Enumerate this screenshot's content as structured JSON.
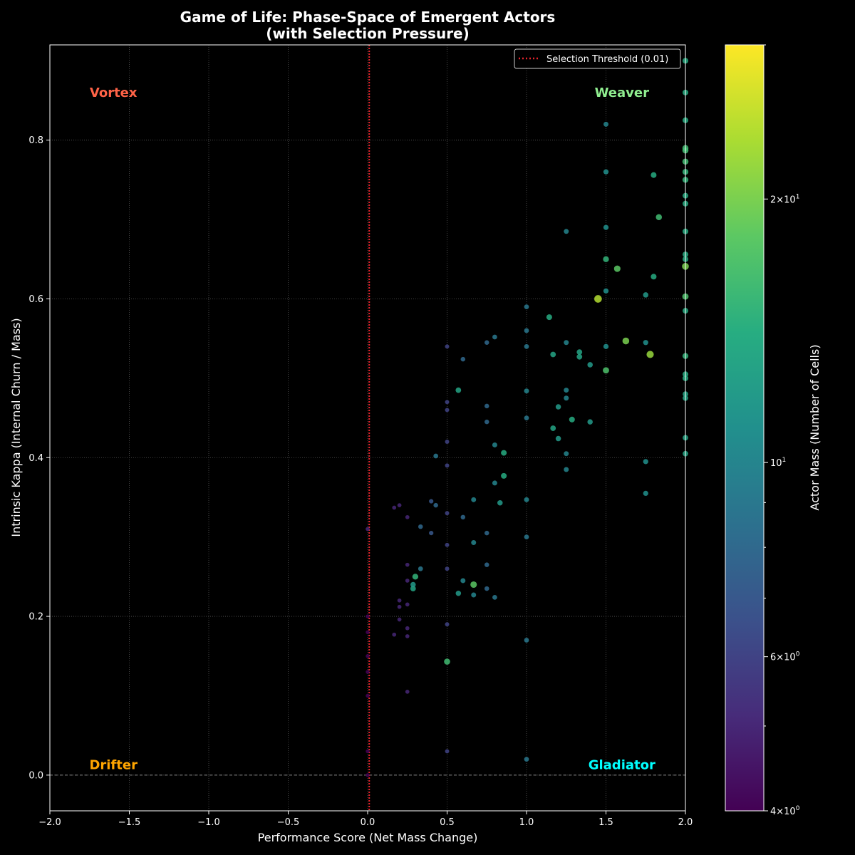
{
  "chart_data": {
    "type": "scatter",
    "title": [
      "Game of Life: Phase-Space of Emergent Actors",
      "(with Selection Pressure)"
    ],
    "xlabel": "Performance Score (Net Mass Change)",
    "ylabel": "Intrinsic Kappa (Internal Churn / Mass)",
    "xlim": [
      -2.0,
      2.0
    ],
    "ylim": [
      -0.045,
      0.92
    ],
    "x_ticks": [
      -2.0,
      -1.5,
      -1.0,
      -0.5,
      0.0,
      0.5,
      1.0,
      1.5,
      2.0
    ],
    "x_tick_labels": [
      "−2.0",
      "−1.5",
      "−1.0",
      "−0.5",
      "0.0",
      "0.5",
      "1.0",
      "1.5",
      "2.0"
    ],
    "y_ticks": [
      0.0,
      0.2,
      0.4,
      0.6,
      0.8
    ],
    "y_tick_labels": [
      "0.0",
      "0.2",
      "0.4",
      "0.6",
      "0.8"
    ],
    "grid": true,
    "background_color": "#000000",
    "threshold": {
      "value": 0.01,
      "label": "Selection Threshold (0.01)",
      "color": "#e8242c"
    },
    "zero_line_color": "#888888",
    "legend_position": "upper-right",
    "regions": [
      {
        "name": "Vortex",
        "x": -1.6,
        "y": 0.86,
        "color": "#ff6347"
      },
      {
        "name": "Weaver",
        "x": 1.6,
        "y": 0.86,
        "color": "#90ee90"
      },
      {
        "name": "Drifter",
        "x": -1.6,
        "y": 0.013,
        "color": "#ffa500"
      },
      {
        "name": "Gladiator",
        "x": 1.6,
        "y": 0.013,
        "color": "#00ffff"
      }
    ],
    "colorbar": {
      "label": "Actor Mass (Number of Cells)",
      "scale": "log",
      "range": [
        4,
        30
      ],
      "ticks": [
        {
          "value": 4,
          "base": "4",
          "mult": "×10",
          "exp": "0"
        },
        {
          "value": 6,
          "base": "6",
          "mult": "×10",
          "exp": "0"
        },
        {
          "value": 10,
          "base": "10",
          "mult": "",
          "exp": "1"
        },
        {
          "value": 20,
          "base": "2",
          "mult": "×10",
          "exp": "1"
        }
      ],
      "minor_ticks": [
        5,
        7,
        8,
        9,
        30
      ],
      "colormap": [
        "#440154",
        "#472c7a",
        "#3b518b",
        "#2c718e",
        "#21908d",
        "#27ad81",
        "#5cc863",
        "#aadc32",
        "#fde725"
      ]
    },
    "points": [
      [
        0.0,
        0.0,
        4
      ],
      [
        0.0,
        0.03,
        4
      ],
      [
        0.0,
        0.1,
        4
      ],
      [
        0.0,
        0.13,
        4
      ],
      [
        0.0,
        0.15,
        4
      ],
      [
        0.0,
        0.18,
        4
      ],
      [
        0.0,
        0.2,
        4
      ],
      [
        0.0,
        0.31,
        5
      ],
      [
        0.167,
        0.177,
        5
      ],
      [
        0.167,
        0.337,
        5
      ],
      [
        0.2,
        0.196,
        5
      ],
      [
        0.2,
        0.212,
        5
      ],
      [
        0.2,
        0.22,
        5
      ],
      [
        0.2,
        0.34,
        5
      ],
      [
        0.25,
        0.105,
        5
      ],
      [
        0.25,
        0.175,
        5
      ],
      [
        0.25,
        0.185,
        5
      ],
      [
        0.25,
        0.215,
        5
      ],
      [
        0.25,
        0.245,
        5
      ],
      [
        0.25,
        0.265,
        5
      ],
      [
        0.25,
        0.325,
        5
      ],
      [
        0.286,
        0.235,
        13
      ],
      [
        0.286,
        0.24,
        12
      ],
      [
        0.3,
        0.25,
        15
      ],
      [
        0.333,
        0.26,
        9
      ],
      [
        0.333,
        0.313,
        8
      ],
      [
        0.4,
        0.305,
        7
      ],
      [
        0.4,
        0.345,
        7
      ],
      [
        0.429,
        0.34,
        8
      ],
      [
        0.429,
        0.402,
        9
      ],
      [
        0.5,
        0.03,
        6
      ],
      [
        0.5,
        0.143,
        16
      ],
      [
        0.5,
        0.19,
        6
      ],
      [
        0.5,
        0.26,
        6
      ],
      [
        0.5,
        0.29,
        6
      ],
      [
        0.5,
        0.33,
        6
      ],
      [
        0.5,
        0.39,
        6
      ],
      [
        0.5,
        0.42,
        6
      ],
      [
        0.5,
        0.46,
        6
      ],
      [
        0.5,
        0.47,
        6
      ],
      [
        0.5,
        0.54,
        6
      ],
      [
        0.571,
        0.229,
        12
      ],
      [
        0.571,
        0.485,
        13
      ],
      [
        0.6,
        0.245,
        10
      ],
      [
        0.6,
        0.325,
        8
      ],
      [
        0.6,
        0.524,
        8
      ],
      [
        0.667,
        0.227,
        10
      ],
      [
        0.667,
        0.24,
        18
      ],
      [
        0.667,
        0.293,
        10
      ],
      [
        0.667,
        0.347,
        10
      ],
      [
        0.75,
        0.235,
        8
      ],
      [
        0.75,
        0.265,
        8
      ],
      [
        0.75,
        0.305,
        8
      ],
      [
        0.75,
        0.445,
        8
      ],
      [
        0.75,
        0.465,
        8
      ],
      [
        0.75,
        0.545,
        8
      ],
      [
        0.8,
        0.224,
        9
      ],
      [
        0.8,
        0.368,
        10
      ],
      [
        0.8,
        0.416,
        10
      ],
      [
        0.8,
        0.552,
        9
      ],
      [
        0.833,
        0.343,
        12
      ],
      [
        0.857,
        0.377,
        14
      ],
      [
        0.857,
        0.406,
        14
      ],
      [
        1.0,
        0.02,
        9
      ],
      [
        1.0,
        0.17,
        9
      ],
      [
        1.0,
        0.3,
        9
      ],
      [
        1.0,
        0.347,
        10
      ],
      [
        1.0,
        0.45,
        9
      ],
      [
        1.0,
        0.484,
        10
      ],
      [
        1.0,
        0.54,
        9
      ],
      [
        1.0,
        0.56,
        9
      ],
      [
        1.0,
        0.59,
        9
      ],
      [
        1.143,
        0.577,
        14
      ],
      [
        1.167,
        0.437,
        13
      ],
      [
        1.167,
        0.53,
        13
      ],
      [
        1.2,
        0.424,
        12
      ],
      [
        1.2,
        0.464,
        12
      ],
      [
        1.25,
        0.385,
        10
      ],
      [
        1.25,
        0.405,
        10
      ],
      [
        1.25,
        0.475,
        10
      ],
      [
        1.25,
        0.485,
        10
      ],
      [
        1.25,
        0.545,
        10
      ],
      [
        1.25,
        0.685,
        10
      ],
      [
        1.286,
        0.448,
        14
      ],
      [
        1.333,
        0.527,
        13
      ],
      [
        1.333,
        0.533,
        13
      ],
      [
        1.4,
        0.445,
        12
      ],
      [
        1.4,
        0.517,
        12
      ],
      [
        1.45,
        0.6,
        24
      ],
      [
        1.5,
        0.51,
        17
      ],
      [
        1.5,
        0.54,
        11
      ],
      [
        1.5,
        0.61,
        11
      ],
      [
        1.5,
        0.65,
        15
      ],
      [
        1.5,
        0.69,
        11
      ],
      [
        1.5,
        0.76,
        11
      ],
      [
        1.5,
        0.82,
        10
      ],
      [
        1.571,
        0.638,
        18
      ],
      [
        1.625,
        0.547,
        20
      ],
      [
        1.75,
        0.355,
        11
      ],
      [
        1.75,
        0.395,
        11
      ],
      [
        1.75,
        0.545,
        11
      ],
      [
        1.75,
        0.605,
        12
      ],
      [
        1.778,
        0.53,
        22
      ],
      [
        1.8,
        0.628,
        14
      ],
      [
        1.8,
        0.756,
        14
      ],
      [
        1.833,
        0.703,
        16
      ],
      [
        2.0,
        0.405,
        13
      ],
      [
        2.0,
        0.425,
        13
      ],
      [
        2.0,
        0.475,
        13
      ],
      [
        2.0,
        0.48,
        13
      ],
      [
        2.0,
        0.5,
        14
      ],
      [
        2.0,
        0.505,
        14
      ],
      [
        2.0,
        0.528,
        15
      ],
      [
        2.0,
        0.585,
        14
      ],
      [
        2.0,
        0.603,
        17
      ],
      [
        2.0,
        0.641,
        20
      ],
      [
        2.0,
        0.65,
        14
      ],
      [
        2.0,
        0.656,
        14
      ],
      [
        2.0,
        0.685,
        14
      ],
      [
        2.0,
        0.72,
        14
      ],
      [
        2.0,
        0.73,
        14
      ],
      [
        2.0,
        0.75,
        15
      ],
      [
        2.0,
        0.76,
        15
      ],
      [
        2.0,
        0.773,
        16
      ],
      [
        2.0,
        0.787,
        16
      ],
      [
        2.0,
        0.79,
        16
      ],
      [
        2.0,
        0.825,
        14
      ],
      [
        2.0,
        0.86,
        14
      ],
      [
        2.0,
        0.9,
        14
      ]
    ]
  }
}
